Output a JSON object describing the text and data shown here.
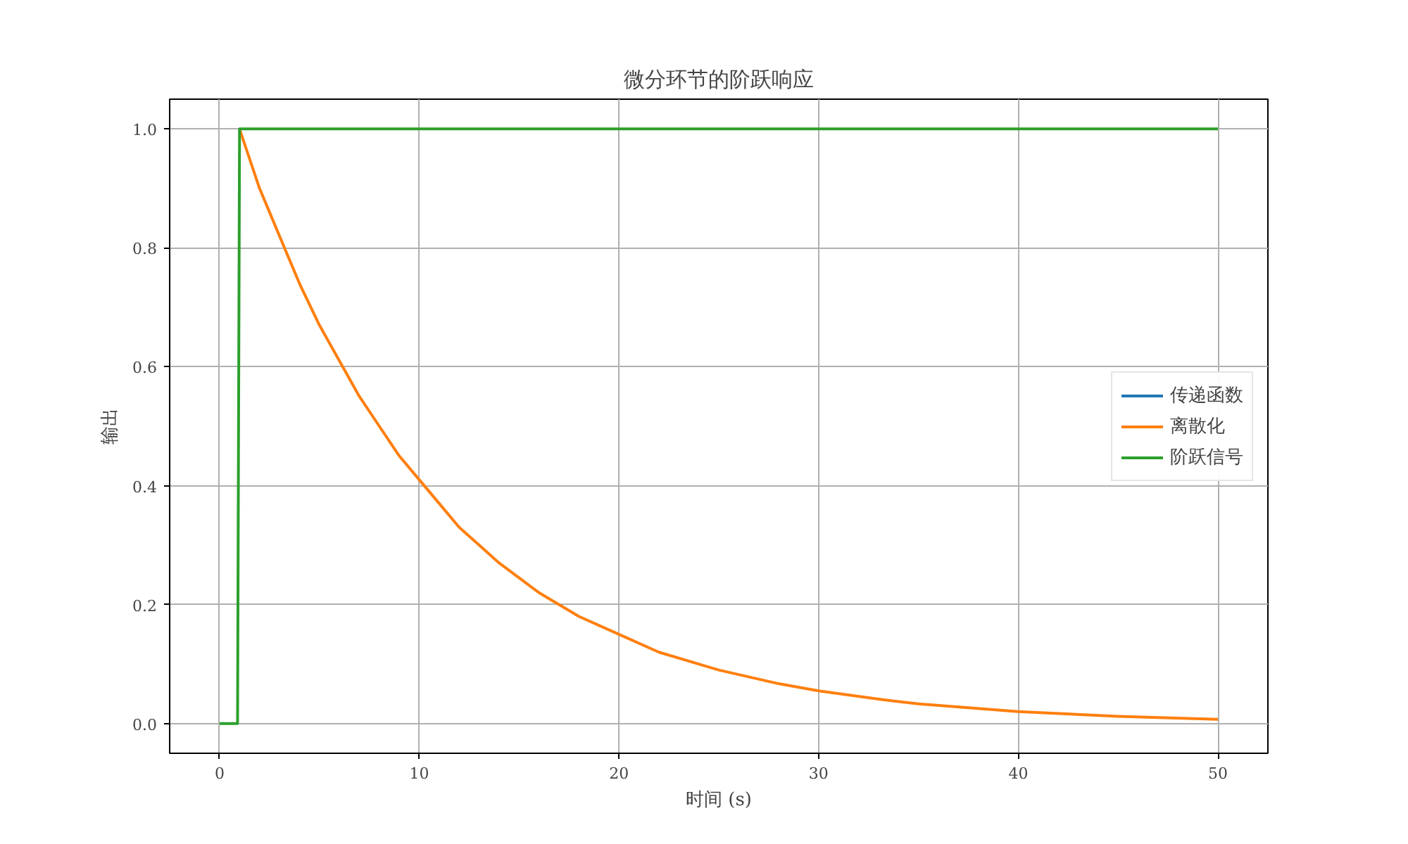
{
  "chart_data": {
    "type": "line",
    "title": "微分环节的阶跃响应",
    "xlabel": "时间 (s)",
    "ylabel": "输出",
    "xlim": [
      -2.5,
      52.5
    ],
    "ylim": [
      -0.05,
      1.05
    ],
    "xticks": [
      0,
      10,
      20,
      30,
      40,
      50
    ],
    "yticks": [
      {
        "value": 0,
        "label": "0.0"
      },
      {
        "value": 0.2,
        "label": "0.2"
      },
      {
        "value": 0.4,
        "label": "0.4"
      },
      {
        "value": 0.6,
        "label": "0.6"
      },
      {
        "value": 0.8,
        "label": "0.8"
      },
      {
        "value": 1,
        "label": "1.0"
      }
    ],
    "grid": true,
    "legend": "right",
    "line_style": "solid",
    "series": [
      {
        "name": "传递函数",
        "color": "#1f77b4"
      },
      {
        "name": "离散化",
        "color": "#ff7f0e",
        "x": [
          1,
          1.5,
          2,
          2.5,
          3,
          3.5,
          4,
          5,
          6,
          7,
          8,
          9,
          10,
          11,
          12,
          13,
          14,
          16,
          18,
          20,
          22,
          25,
          28,
          30,
          33,
          35,
          40,
          45,
          50
        ],
        "values": [
          1.0,
          0.95,
          0.9,
          0.86,
          0.82,
          0.78,
          0.74,
          0.67,
          0.61,
          0.55,
          0.5,
          0.45,
          0.41,
          0.37,
          0.33,
          0.3,
          0.27,
          0.22,
          0.18,
          0.15,
          0.12,
          0.09,
          0.067,
          0.055,
          0.041,
          0.033,
          0.02,
          0.012,
          0.007
        ]
      },
      {
        "name": "阶跃信号",
        "color": "#2ca02c",
        "x": [
          0,
          0.9,
          1,
          50
        ],
        "values": [
          0,
          0,
          1,
          1
        ]
      }
    ]
  }
}
